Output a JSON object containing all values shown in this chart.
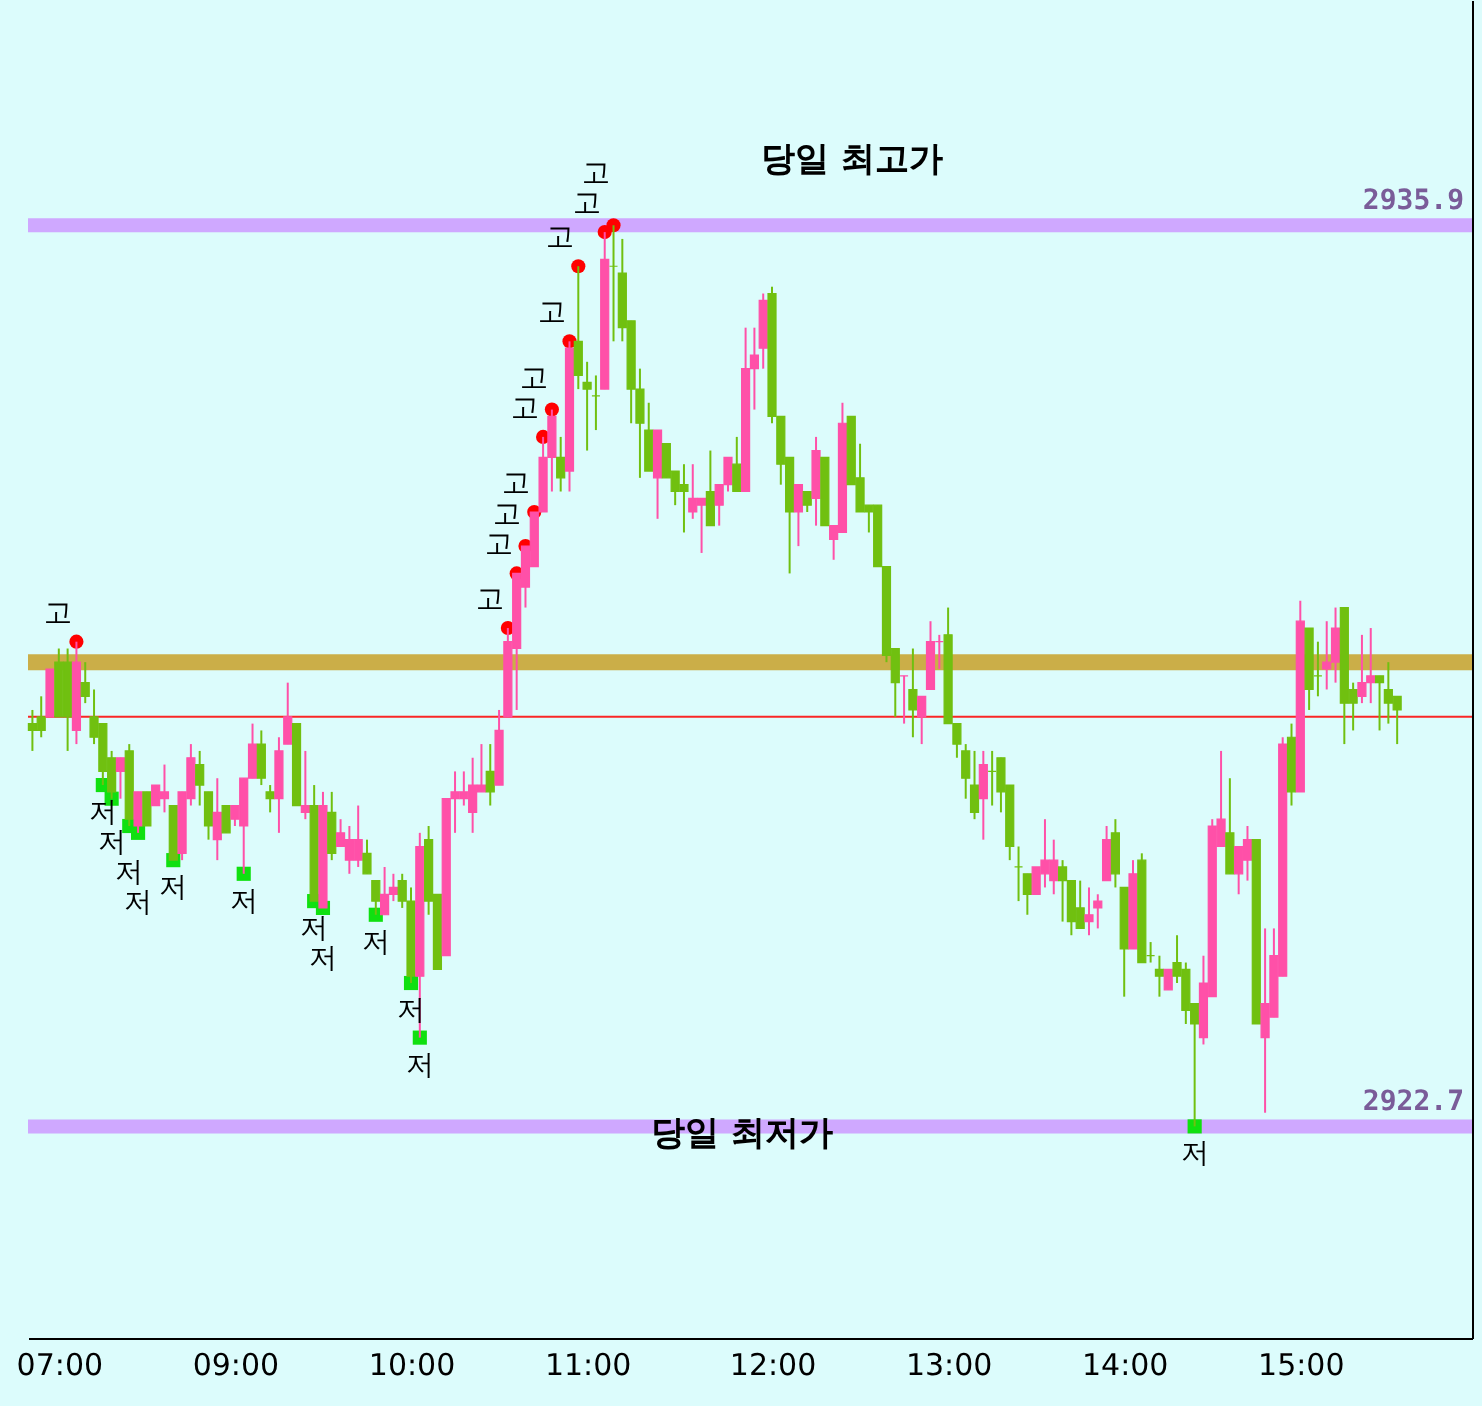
{
  "chart_data": {
    "type": "candlestick",
    "annotations": [
      "당일 최고가",
      "당일 최저가"
    ],
    "categories": [
      null,
      null,
      null,
      "07:00",
      null,
      null,
      null,
      null,
      null,
      null,
      null,
      null,
      null,
      null,
      null,
      null,
      null,
      null,
      null,
      null,
      null,
      null,
      null,
      "09:00",
      null,
      null,
      null,
      null,
      null,
      null,
      null,
      null,
      null,
      null,
      null,
      null,
      null,
      null,
      null,
      null,
      null,
      null,
      null,
      "10:00",
      null,
      null,
      null,
      null,
      null,
      null,
      null,
      null,
      null,
      null,
      null,
      null,
      null,
      null,
      null,
      null,
      null,
      null,
      null,
      "11:00",
      null,
      null,
      null,
      null,
      null,
      null,
      null,
      null,
      null,
      null,
      null,
      null,
      null,
      null,
      null,
      null,
      null,
      null,
      null,
      null,
      "12:00",
      null,
      null,
      null,
      null,
      null,
      null,
      null,
      null,
      null,
      null,
      null,
      null,
      null,
      null,
      null,
      null,
      null,
      null,
      null,
      "13:00",
      null,
      null,
      null,
      null,
      null,
      null,
      null,
      null,
      null,
      null,
      null,
      null,
      null,
      null,
      null,
      null,
      null,
      null,
      null,
      "14:00",
      null,
      null,
      null,
      null,
      null,
      null,
      null,
      null,
      null,
      null,
      null,
      null,
      null,
      null,
      null,
      null,
      null,
      null,
      null,
      "15:00",
      null,
      null,
      null,
      null,
      null,
      null,
      null,
      null,
      null,
      null,
      null,
      null,
      null,
      null,
      null,
      null,
      null,
      null,
      null
    ],
    "ohlc": [
      [
        2928.6,
        2928.8,
        2928.2,
        2928.5
      ],
      [
        2928.7,
        2929.0,
        2928.4,
        2928.5
      ],
      [
        2928.7,
        2929.4,
        2928.7,
        2929.4
      ],
      [
        2929.5,
        2929.7,
        2928.7,
        2928.7
      ],
      [
        2929.5,
        2929.7,
        2928.2,
        2928.7
      ],
      [
        2928.5,
        2929.8,
        2928.3,
        2929.5
      ],
      [
        2929.2,
        2929.5,
        2928.9,
        2929.0
      ],
      [
        2928.7,
        2929.1,
        2928.3,
        2928.4
      ],
      [
        2928.6,
        2928.6,
        2927.7,
        2927.9
      ],
      [
        2928.1,
        2928.2,
        2927.5,
        2927.6
      ],
      [
        2927.9,
        2928.1,
        2927.5,
        2928.1
      ],
      [
        2928.2,
        2928.3,
        2927.1,
        2927.2
      ],
      [
        2927.1,
        2927.6,
        2927.0,
        2927.6
      ],
      [
        2927.6,
        2927.6,
        2927.1,
        2927.1
      ],
      [
        2927.4,
        2927.7,
        2927.4,
        2927.7
      ],
      [
        2927.5,
        2928.0,
        2927.3,
        2927.6
      ],
      [
        2927.4,
        2927.4,
        2926.6,
        2926.6
      ],
      [
        2926.7,
        2927.6,
        2926.6,
        2927.6
      ],
      [
        2927.5,
        2928.3,
        2927.4,
        2928.1
      ],
      [
        2928.0,
        2928.2,
        2927.4,
        2927.7
      ],
      [
        2927.6,
        2927.6,
        2926.9,
        2927.1
      ],
      [
        2926.9,
        2927.8,
        2926.6,
        2927.3
      ],
      [
        2927.4,
        2927.4,
        2927.0,
        2927.0
      ],
      [
        2927.2,
        2927.4,
        2927.1,
        2927.4
      ],
      [
        2927.1,
        2927.8,
        2926.4,
        2927.8
      ],
      [
        2927.8,
        2928.6,
        2927.8,
        2928.3
      ],
      [
        2928.3,
        2928.5,
        2927.7,
        2927.8
      ],
      [
        2927.6,
        2927.7,
        2927.3,
        2927.5
      ],
      [
        2927.5,
        2928.4,
        2927.0,
        2928.2
      ],
      [
        2928.3,
        2929.2,
        2928.3,
        2928.7
      ],
      [
        2928.6,
        2928.6,
        2927.4,
        2927.4
      ],
      [
        2927.3,
        2928.2,
        2927.2,
        2927.4
      ],
      [
        2927.4,
        2927.7,
        2926.0,
        2926.0
      ],
      [
        2925.9,
        2927.6,
        2925.9,
        2927.4
      ],
      [
        2927.3,
        2927.6,
        2926.6,
        2926.7
      ],
      [
        2926.8,
        2927.2,
        2926.8,
        2927.0
      ],
      [
        2926.6,
        2927.1,
        2926.4,
        2926.9
      ],
      [
        2926.6,
        2927.4,
        2926.5,
        2926.9
      ],
      [
        2926.7,
        2926.9,
        2926.4,
        2926.4
      ],
      [
        2926.3,
        2926.3,
        2925.8,
        2926.0
      ],
      [
        2925.8,
        2926.5,
        2925.8,
        2926.1
      ],
      [
        2926.1,
        2926.4,
        2926.0,
        2926.2
      ],
      [
        2926.3,
        2926.4,
        2925.9,
        2926.0
      ],
      [
        2926.0,
        2926.2,
        2924.8,
        2924.9
      ],
      [
        2924.9,
        2927.0,
        2924.0,
        2926.8
      ],
      [
        2926.9,
        2927.1,
        2925.8,
        2926.0
      ],
      [
        2926.1,
        2926.1,
        2925.0,
        2925.0
      ],
      [
        2925.2,
        2927.5,
        2925.2,
        2927.5
      ],
      [
        2927.5,
        2927.9,
        2927.0,
        2927.6
      ],
      [
        2927.5,
        2927.9,
        2927.4,
        2927.6
      ],
      [
        2927.3,
        2928.1,
        2927.0,
        2927.7
      ],
      [
        2927.6,
        2928.3,
        2927.6,
        2927.7
      ],
      [
        2927.9,
        2928.3,
        2927.4,
        2927.6
      ],
      [
        2927.7,
        2928.8,
        2927.7,
        2928.5
      ],
      [
        2928.7,
        2930.0,
        2928.7,
        2929.8
      ],
      [
        2929.7,
        2930.8,
        2928.8,
        2930.8
      ],
      [
        2930.6,
        2931.2,
        2930.3,
        2931.2
      ],
      [
        2930.9,
        2931.7,
        2930.9,
        2931.7
      ],
      [
        2931.7,
        2932.8,
        2931.7,
        2932.5
      ],
      [
        2932.5,
        2933.2,
        2932.0,
        2933.1
      ],
      [
        2932.5,
        2932.8,
        2932.0,
        2932.2
      ],
      [
        2932.3,
        2934.2,
        2932.0,
        2934.1
      ],
      [
        2934.2,
        2935.3,
        2933.5,
        2933.7
      ],
      [
        2933.6,
        2933.9,
        2932.6,
        2933.5
      ],
      [
        2933.4,
        2933.7,
        2932.9,
        2933.4
      ],
      [
        2933.5,
        2935.8,
        2933.5,
        2935.4
      ],
      [
        2935.3,
        2935.9,
        2934.2,
        2935.3
      ],
      [
        2935.2,
        2935.7,
        2934.2,
        2934.4
      ],
      [
        2934.5,
        2934.5,
        2933.0,
        2933.5
      ],
      [
        2933.5,
        2933.8,
        2932.2,
        2933.0
      ],
      [
        2932.9,
        2933.3,
        2932.3,
        2932.3
      ],
      [
        2932.2,
        2932.9,
        2931.6,
        2932.9
      ],
      [
        2932.7,
        2932.7,
        2932.2,
        2932.2
      ],
      [
        2932.3,
        2932.3,
        2931.8,
        2932.0
      ],
      [
        2932.1,
        2932.4,
        2931.4,
        2932.0
      ],
      [
        2931.7,
        2932.4,
        2931.6,
        2931.9
      ],
      [
        2931.8,
        2931.9,
        2931.1,
        2931.9
      ],
      [
        2932.0,
        2932.6,
        2931.5,
        2931.5
      ],
      [
        2931.8,
        2932.1,
        2931.5,
        2932.1
      ],
      [
        2932.1,
        2932.5,
        2932.0,
        2932.5
      ],
      [
        2932.4,
        2932.8,
        2932.0,
        2932.0
      ],
      [
        2932.0,
        2934.4,
        2932.0,
        2933.8
      ],
      [
        2933.8,
        2934.4,
        2933.2,
        2934.0
      ],
      [
        2934.1,
        2934.9,
        2933.8,
        2934.8
      ],
      [
        2934.9,
        2935.0,
        2933.0,
        2933.1
      ],
      [
        2933.1,
        2933.1,
        2932.1,
        2932.4
      ],
      [
        2932.5,
        2932.5,
        2930.8,
        2931.7
      ],
      [
        2931.7,
        2932.1,
        2931.2,
        2932.1
      ],
      [
        2932.0,
        2932.0,
        2931.7,
        2931.8
      ],
      [
        2931.9,
        2932.8,
        2931.5,
        2932.6
      ],
      [
        2932.5,
        2932.5,
        2931.5,
        2931.5
      ],
      [
        2931.3,
        2931.5,
        2931.0,
        2931.5
      ],
      [
        2931.4,
        2933.3,
        2931.4,
        2933.0
      ],
      [
        2933.1,
        2933.1,
        2932.1,
        2932.1
      ],
      [
        2932.2,
        2932.7,
        2931.7,
        2931.7
      ],
      [
        2931.8,
        2931.8,
        2931.4,
        2931.7
      ],
      [
        2931.8,
        2931.8,
        2930.9,
        2930.9
      ],
      [
        2930.9,
        2930.9,
        2929.5,
        2929.6
      ],
      [
        2929.7,
        2929.7,
        2928.7,
        2929.2
      ],
      [
        2929.3,
        2929.3,
        2928.6,
        2929.3
      ],
      [
        2929.1,
        2929.7,
        2928.4,
        2928.8
      ],
      [
        2928.7,
        2929.0,
        2928.3,
        2929.0
      ],
      [
        2929.1,
        2930.1,
        2929.1,
        2929.8
      ],
      [
        2929.8,
        2929.9,
        2929.4,
        2929.8
      ],
      [
        2929.9,
        2930.3,
        2928.6,
        2928.6
      ],
      [
        2928.6,
        2928.6,
        2928.1,
        2928.3
      ],
      [
        2928.2,
        2928.3,
        2927.5,
        2927.8
      ],
      [
        2927.7,
        2928.2,
        2927.2,
        2927.3
      ],
      [
        2927.5,
        2928.2,
        2926.9,
        2928.0
      ],
      [
        2927.9,
        2928.2,
        2927.4,
        2927.9
      ],
      [
        2928.1,
        2928.1,
        2927.3,
        2927.6
      ],
      [
        2927.7,
        2927.7,
        2926.6,
        2926.8
      ],
      [
        2926.5,
        2926.8,
        2926.0,
        2926.5
      ],
      [
        2926.4,
        2926.4,
        2925.8,
        2926.1
      ],
      [
        2926.1,
        2926.5,
        2926.1,
        2926.5
      ],
      [
        2926.4,
        2927.2,
        2926.2,
        2926.6
      ],
      [
        2926.3,
        2926.9,
        2926.1,
        2926.6
      ],
      [
        2926.5,
        2926.6,
        2925.7,
        2926.3
      ],
      [
        2926.3,
        2926.3,
        2925.5,
        2925.7
      ],
      [
        2925.9,
        2926.3,
        2925.6,
        2925.6
      ],
      [
        2925.7,
        2926.2,
        2925.5,
        2925.8
      ],
      [
        2925.9,
        2926.1,
        2925.6,
        2926.0
      ],
      [
        2926.3,
        2927.1,
        2926.3,
        2926.9
      ],
      [
        2927.0,
        2927.2,
        2926.2,
        2926.4
      ],
      [
        2926.2,
        2926.2,
        2924.6,
        2925.3
      ],
      [
        2925.3,
        2926.6,
        2925.3,
        2926.4
      ],
      [
        2926.6,
        2926.7,
        2925.1,
        2925.1
      ],
      [
        2925.2,
        2925.4,
        2925.1,
        2925.2
      ],
      [
        2925.0,
        2925.2,
        2924.6,
        2924.9
      ],
      [
        2924.7,
        2925.0,
        2924.7,
        2925.0
      ],
      [
        2925.1,
        2925.5,
        2924.8,
        2924.9
      ],
      [
        2925.0,
        2925.1,
        2924.2,
        2924.4
      ],
      [
        2924.5,
        2924.5,
        2922.7,
        2924.2
      ],
      [
        2924.0,
        2925.2,
        2923.9,
        2924.8
      ],
      [
        2924.6,
        2927.2,
        2924.6,
        2927.1
      ],
      [
        2926.8,
        2928.2,
        2926.8,
        2927.2
      ],
      [
        2927.0,
        2927.8,
        2926.4,
        2926.4
      ],
      [
        2926.4,
        2926.8,
        2926.1,
        2926.8
      ],
      [
        2926.6,
        2927.1,
        2926.3,
        2926.9
      ],
      [
        2926.9,
        2926.9,
        2924.2,
        2924.2
      ],
      [
        2924.0,
        2925.6,
        2922.9,
        2924.5
      ],
      [
        2924.3,
        2925.6,
        2924.3,
        2925.2
      ],
      [
        2924.9,
        2928.4,
        2924.9,
        2928.3
      ],
      [
        2928.4,
        2928.6,
        2927.4,
        2927.6
      ],
      [
        2927.6,
        2930.4,
        2927.6,
        2930.1
      ],
      [
        2930.0,
        2930.0,
        2928.8,
        2929.1
      ],
      [
        2929.3,
        2929.8,
        2929.0,
        2929.3
      ],
      [
        2929.4,
        2930.1,
        2929.1,
        2929.5
      ],
      [
        2929.5,
        2930.3,
        2929.2,
        2930.0
      ],
      [
        2930.3,
        2930.3,
        2928.3,
        2928.9
      ],
      [
        2929.1,
        2929.2,
        2928.5,
        2928.9
      ],
      [
        2929.0,
        2929.9,
        2928.9,
        2929.2
      ],
      [
        2929.2,
        2930.0,
        2928.9,
        2929.3
      ],
      [
        2929.3,
        2929.3,
        2928.5,
        2929.2
      ],
      [
        2929.1,
        2929.5,
        2928.6,
        2928.9
      ],
      [
        2929.0,
        2929.0,
        2928.3,
        2928.8
      ],
      null,
      null,
      null,
      null,
      null,
      null,
      null,
      null
    ],
    "colors": [
      "#70c010",
      "#70c010",
      "#ff50a8",
      "#70c010",
      "#70c010",
      "#ff50a8",
      "#70c010",
      "#70c010",
      "#70c010",
      "#70c010",
      "#ff50a8",
      "#70c010",
      "#ff50a8",
      "#70c010",
      "#ff50a8",
      "#ff50a8",
      "#70c010",
      "#ff50a8",
      "#ff50a8",
      "#70c010",
      "#70c010",
      "#ff50a8",
      "#70c010",
      "#ff50a8",
      "#ff50a8",
      "#ff50a8",
      "#70c010",
      "#70c010",
      "#ff50a8",
      "#ff50a8",
      "#70c010",
      "#ff50a8",
      "#70c010",
      "#ff50a8",
      "#70c010",
      "#ff50a8",
      "#ff50a8",
      "#ff50a8",
      "#70c010",
      "#70c010",
      "#ff50a8",
      "#ff50a8",
      "#70c010",
      "#70c010",
      "#ff50a8",
      "#70c010",
      "#70c010",
      "#ff50a8",
      "#ff50a8",
      "#ff50a8",
      "#ff50a8",
      "#ff50a8",
      "#70c010",
      "#ff50a8",
      "#ff50a8",
      "#ff50a8",
      "#ff50a8",
      "#ff50a8",
      "#ff50a8",
      "#ff50a8",
      "#70c010",
      "#ff50a8",
      "#70c010",
      "#70c010",
      "#70c010",
      "#ff50a8",
      "#70c010",
      "#70c010",
      "#70c010",
      "#70c010",
      "#70c010",
      "#ff50a8",
      "#70c010",
      "#70c010",
      "#70c010",
      "#ff50a8",
      "#ff50a8",
      "#70c010",
      "#ff50a8",
      "#ff50a8",
      "#70c010",
      "#ff50a8",
      "#ff50a8",
      "#ff50a8",
      "#70c010",
      "#70c010",
      "#70c010",
      "#ff50a8",
      "#70c010",
      "#ff50a8",
      "#70c010",
      "#ff50a8",
      "#ff50a8",
      "#70c010",
      "#70c010",
      "#70c010",
      "#70c010",
      "#70c010",
      "#70c010",
      "#ff50a8",
      "#70c010",
      "#ff50a8",
      "#ff50a8",
      "#ff50a8",
      "#70c010",
      "#70c010",
      "#70c010",
      "#70c010",
      "#ff50a8",
      "#70c010",
      "#70c010",
      "#70c010",
      "#70c010",
      "#70c010",
      "#ff50a8",
      "#ff50a8",
      "#ff50a8",
      "#70c010",
      "#70c010",
      "#70c010",
      "#ff50a8",
      "#ff50a8",
      "#ff50a8",
      "#70c010",
      "#70c010",
      "#ff50a8",
      "#70c010",
      "#70c010",
      "#70c010",
      "#ff50a8",
      "#70c010",
      "#70c010",
      "#70c010",
      "#ff50a8",
      "#ff50a8",
      "#ff50a8",
      "#70c010",
      "#ff50a8",
      "#ff50a8",
      "#70c010",
      "#ff50a8",
      "#ff50a8",
      "#ff50a8",
      "#70c010",
      "#ff50a8",
      "#70c010",
      "#70c010",
      "#ff50a8",
      "#ff50a8",
      "#70c010",
      "#70c010",
      "#ff50a8",
      "#ff50a8",
      "#70c010",
      "#70c010",
      "#70c010",
      null,
      null,
      null,
      null,
      null,
      null,
      null,
      null
    ],
    "series": [
      {
        "type": "scatter",
        "marker": "circle",
        "color": "#ff0000",
        "values": [
          null,
          null,
          null,
          null,
          null,
          2929.8,
          null,
          null,
          null,
          null,
          null,
          null,
          null,
          null,
          null,
          null,
          null,
          null,
          null,
          null,
          null,
          null,
          null,
          null,
          null,
          null,
          null,
          null,
          null,
          null,
          null,
          null,
          null,
          null,
          null,
          null,
          null,
          null,
          null,
          null,
          null,
          null,
          null,
          null,
          null,
          null,
          null,
          null,
          null,
          null,
          null,
          null,
          null,
          null,
          2930.0,
          2930.8,
          2931.2,
          2931.7,
          2932.8,
          2933.2,
          null,
          2934.2,
          2935.3,
          null,
          null,
          2935.8,
          2935.9,
          null,
          null,
          null,
          null,
          null,
          null,
          null,
          null,
          null,
          null,
          null,
          null,
          null,
          null,
          null,
          null,
          null,
          null,
          null,
          null,
          null,
          null,
          null,
          null,
          null,
          null,
          null,
          null,
          null,
          null,
          null,
          null,
          null,
          null,
          null,
          null,
          null,
          null,
          null,
          null,
          null,
          null,
          null,
          null,
          null,
          null,
          null,
          null,
          null,
          null,
          null,
          null,
          null,
          null,
          null,
          null,
          null,
          null,
          null,
          null,
          null,
          null,
          null,
          null,
          null,
          null,
          null,
          null,
          null,
          null,
          null,
          null,
          null,
          null,
          null,
          null,
          null,
          null,
          null,
          null,
          null,
          null,
          null,
          null,
          null,
          null,
          null,
          null,
          null,
          null,
          null,
          null,
          null,
          null,
          null,
          null,
          null
        ],
        "value_labels": [
          null,
          null,
          null,
          null,
          null,
          "고",
          null,
          null,
          null,
          null,
          null,
          null,
          null,
          null,
          null,
          null,
          null,
          null,
          null,
          null,
          null,
          null,
          null,
          null,
          null,
          null,
          null,
          null,
          null,
          null,
          null,
          null,
          null,
          null,
          null,
          null,
          null,
          null,
          null,
          null,
          null,
          null,
          null,
          null,
          null,
          null,
          null,
          null,
          null,
          null,
          null,
          null,
          null,
          null,
          "고",
          "고",
          "고",
          "고",
          "고",
          "고",
          null,
          "고",
          "고",
          null,
          null,
          "고",
          "고",
          null,
          null,
          null,
          null,
          null,
          null,
          null,
          null,
          null,
          null,
          null,
          null,
          null,
          null,
          null,
          null,
          null,
          null,
          null,
          null,
          null,
          null,
          null,
          null,
          null,
          null,
          null,
          null,
          null,
          null,
          null,
          null,
          null,
          null,
          null,
          null,
          null,
          null,
          null,
          null,
          null,
          null,
          null,
          null,
          null,
          null,
          null,
          null,
          null,
          null,
          null,
          null,
          null,
          null,
          null,
          null,
          null,
          null,
          null,
          null,
          null,
          null,
          null,
          null,
          null,
          null,
          null,
          null,
          null,
          null,
          null,
          null,
          null,
          null,
          null,
          null,
          null,
          null,
          null,
          null,
          null,
          null,
          null,
          null,
          null,
          null,
          null,
          null,
          null,
          null,
          null,
          null,
          null,
          null,
          null,
          null,
          null
        ]
      },
      {
        "type": "scatter",
        "marker": "square",
        "color": "#10e010",
        "values": [
          null,
          null,
          null,
          null,
          null,
          null,
          null,
          null,
          2927.7,
          2927.5,
          null,
          2927.1,
          2927.0,
          null,
          null,
          null,
          2926.6,
          null,
          null,
          null,
          null,
          null,
          null,
          null,
          2926.4,
          null,
          null,
          null,
          null,
          null,
          null,
          null,
          2926.0,
          2925.9,
          null,
          null,
          null,
          null,
          null,
          2925.8,
          null,
          null,
          null,
          2924.8,
          2924.0,
          null,
          null,
          null,
          null,
          null,
          null,
          null,
          null,
          null,
          null,
          null,
          null,
          null,
          null,
          null,
          null,
          null,
          null,
          null,
          null,
          null,
          null,
          null,
          null,
          null,
          null,
          null,
          null,
          null,
          null,
          null,
          null,
          null,
          null,
          null,
          null,
          null,
          null,
          null,
          null,
          null,
          null,
          null,
          null,
          null,
          null,
          null,
          null,
          null,
          null,
          null,
          null,
          null,
          null,
          null,
          null,
          null,
          null,
          null,
          null,
          null,
          null,
          null,
          null,
          null,
          null,
          null,
          null,
          null,
          null,
          null,
          null,
          null,
          null,
          null,
          null,
          null,
          null,
          null,
          null,
          null,
          null,
          null,
          null,
          null,
          null,
          null,
          2922.7,
          null,
          null,
          null,
          null,
          null,
          null,
          null,
          null,
          null,
          null,
          null,
          null,
          null,
          null,
          null,
          null,
          null,
          null,
          null,
          null,
          null,
          null,
          null,
          null,
          null,
          null,
          null,
          null,
          null,
          null,
          null
        ],
        "value_labels": [
          null,
          null,
          null,
          null,
          null,
          null,
          null,
          null,
          "저",
          "저",
          null,
          "저",
          "저",
          null,
          null,
          null,
          "저",
          null,
          null,
          null,
          null,
          null,
          null,
          null,
          "저",
          null,
          null,
          null,
          null,
          null,
          null,
          null,
          "저",
          "저",
          null,
          null,
          null,
          null,
          null,
          "저",
          null,
          null,
          null,
          "저",
          "저",
          null,
          null,
          null,
          null,
          null,
          null,
          null,
          null,
          null,
          null,
          null,
          null,
          null,
          null,
          null,
          null,
          null,
          null,
          null,
          null,
          null,
          null,
          null,
          null,
          null,
          null,
          null,
          null,
          null,
          null,
          null,
          null,
          null,
          null,
          null,
          null,
          null,
          null,
          null,
          null,
          null,
          null,
          null,
          null,
          null,
          null,
          null,
          null,
          null,
          null,
          null,
          null,
          null,
          null,
          null,
          null,
          null,
          null,
          null,
          null,
          null,
          null,
          null,
          null,
          null,
          null,
          null,
          null,
          null,
          null,
          null,
          null,
          null,
          null,
          null,
          null,
          null,
          null,
          null,
          null,
          null,
          null,
          null,
          null,
          null,
          null,
          null,
          "저",
          null,
          null,
          null,
          null,
          null,
          null,
          null,
          null,
          null,
          null,
          null,
          null,
          null,
          null,
          null,
          null,
          null,
          null,
          null,
          null,
          null,
          null,
          null,
          null,
          null,
          null,
          null,
          null,
          null,
          null,
          null
        ]
      }
    ],
    "ylim": [
      2919.6,
      2939.2
    ],
    "tick_labels": "x",
    "ref_lines": [
      {
        "axis": "y",
        "value": 2935.9,
        "label": "2935.9",
        "color": "#cc99ff"
      },
      {
        "axis": "y",
        "value": 2922.7,
        "label": "2922.7",
        "color": "#cc99ff"
      },
      {
        "axis": "y",
        "value": 2929.5,
        "label": null,
        "color": "#c8a028"
      },
      {
        "axis": "y",
        "value": 2928.7,
        "label": null,
        "color": "#ff0000"
      }
    ]
  }
}
